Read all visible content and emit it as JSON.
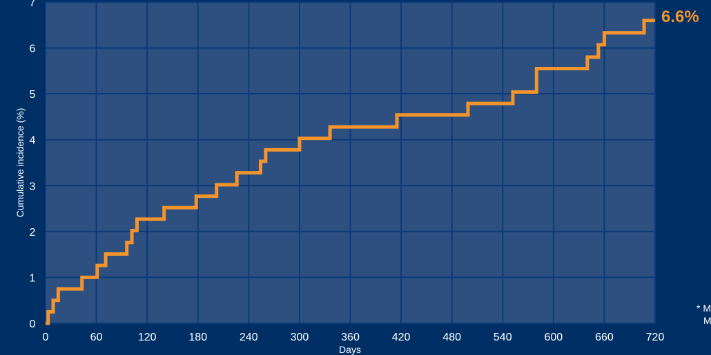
{
  "chart_data": {
    "type": "line",
    "step": true,
    "xlabel": "Days",
    "ylabel": "Cumulative incidence (%)",
    "xlim": [
      0,
      720
    ],
    "ylim": [
      0,
      7
    ],
    "xticks": [
      "0",
      "60",
      "120",
      "180",
      "240",
      "300",
      "360",
      "420",
      "480",
      "540",
      "600",
      "660",
      "720"
    ],
    "yticks": [
      "0",
      "1",
      "2",
      "3",
      "4",
      "5",
      "6",
      "7"
    ],
    "grid": true,
    "end_label": "6.6%",
    "footnote_lines": [
      "* M",
      "M"
    ],
    "series": [
      {
        "color": "#f4942c",
        "x": [
          0,
          3,
          9,
          15,
          43,
          61,
          71,
          80,
          96,
          102,
          108,
          140,
          178,
          202,
          226,
          254,
          260,
          300,
          336,
          415,
          499,
          552,
          573,
          580,
          640,
          653,
          660,
          707,
          720
        ],
        "y": [
          0,
          0.25,
          0.5,
          0.75,
          1.0,
          1.26,
          1.51,
          1.51,
          1.76,
          2.02,
          2.27,
          2.52,
          2.77,
          3.02,
          3.28,
          3.53,
          3.78,
          4.03,
          4.28,
          4.54,
          4.79,
          5.04,
          5.04,
          5.55,
          5.8,
          6.07,
          6.33,
          6.6,
          6.6
        ]
      }
    ]
  }
}
